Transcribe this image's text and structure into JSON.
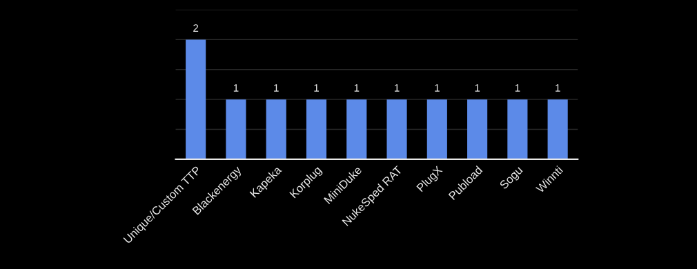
{
  "chart_data": {
    "type": "bar",
    "categories": [
      "Unique/Custom TTP",
      "Blackenergy",
      "Kapeka",
      "Korplug",
      "MiniDuke",
      "NukeSped RAT",
      "PlugX",
      "Pubload",
      "Sogu",
      "Winnti"
    ],
    "values": [
      2,
      1,
      1,
      1,
      1,
      1,
      1,
      1,
      1,
      1
    ],
    "color": "#5c8ae8",
    "ylim": [
      0,
      2.5
    ],
    "yticks": [
      {
        "value": 0,
        "label": null
      },
      {
        "value": 0.5,
        "label": null
      },
      {
        "value": 1,
        "label": null
      },
      {
        "value": 1.5,
        "label": null
      },
      {
        "value": 2,
        "label": null
      },
      {
        "value": 2.5,
        "label": null
      }
    ],
    "grid": "y",
    "tick_labels": "x",
    "data_labels": true
  }
}
